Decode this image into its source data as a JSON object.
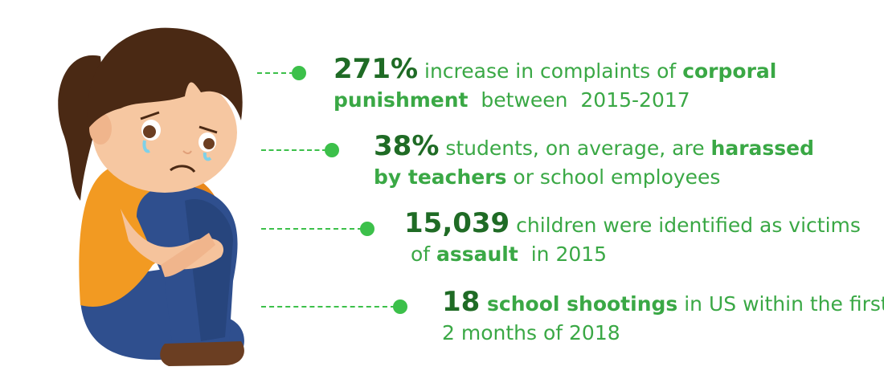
{
  "items": [
    {
      "lines": [
        [
          {
            "text": "271%",
            "weight": "stat"
          },
          {
            "text": " increase in complaints of ",
            "weight": "regular"
          },
          {
            "text": "corporal",
            "weight": "bold"
          }
        ],
        [
          {
            "text": "punishment",
            "weight": "bold"
          },
          {
            "text": "  between  2015-2017",
            "weight": "regular"
          }
        ]
      ]
    },
    {
      "lines": [
        [
          {
            "text": "38%",
            "weight": "stat"
          },
          {
            "text": " students, on average, are ",
            "weight": "regular"
          },
          {
            "text": "harassed",
            "weight": "bold"
          }
        ],
        [
          {
            "text": "by teachers",
            "weight": "bold"
          },
          {
            "text": " or school employees",
            "weight": "regular"
          }
        ]
      ]
    },
    {
      "lines": [
        [
          {
            "text": "15,039",
            "weight": "stat"
          },
          {
            "text": " children were identified as victims",
            "weight": "regular"
          }
        ],
        [
          {
            "text": " of ",
            "weight": "regular"
          },
          {
            "text": "assault",
            "weight": "bold"
          },
          {
            "text": "  in 2015",
            "weight": "regular"
          }
        ]
      ]
    },
    {
      "lines": [
        [
          {
            "text": "18",
            "weight": "stat"
          },
          {
            "text": " school shootings",
            "weight": "bold"
          },
          {
            "text": " in US within the first",
            "weight": "regular"
          }
        ],
        [
          {
            "text": "2 months of 2018",
            "weight": "regular"
          }
        ]
      ]
    }
  ]
}
